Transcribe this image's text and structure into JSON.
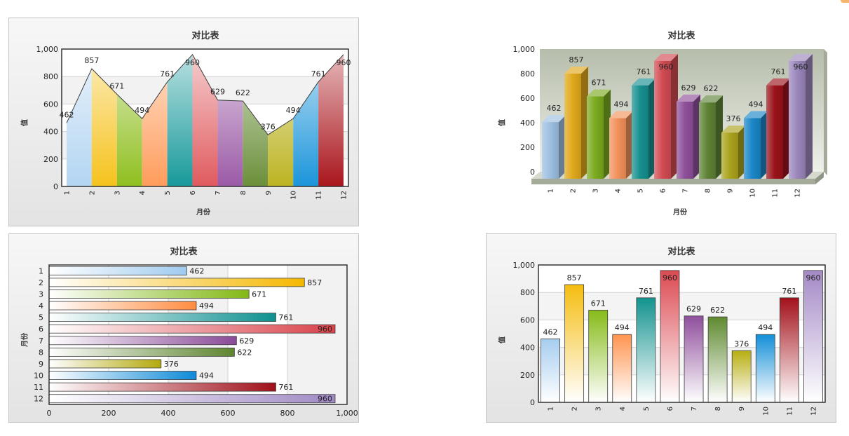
{
  "chart_data": [
    {
      "type": "area",
      "title": "对比表",
      "xlabel": "月份",
      "ylabel": "值",
      "categories": [
        "1",
        "2",
        "3",
        "4",
        "5",
        "6",
        "7",
        "8",
        "9",
        "10",
        "11",
        "12"
      ],
      "values": [
        462,
        857,
        671,
        494,
        761,
        960,
        629,
        622,
        376,
        494,
        761,
        960
      ],
      "ylim": [
        0,
        1000
      ],
      "yticks": [
        "0",
        "200",
        "400",
        "600",
        "800",
        "1,000"
      ],
      "grid": true,
      "data_labels": true,
      "colors": [
        "#b3d5f2",
        "#f6c21c",
        "#8fbf1f",
        "#ff9c5b",
        "#17999a",
        "#e05a5e",
        "#9b5aa6",
        "#6b8f3a",
        "#bcb422",
        "#1b95da",
        "#a9151c",
        "#a78fc6"
      ]
    },
    {
      "type": "bar",
      "style": "3d",
      "orientation": "vertical",
      "title": "对比表",
      "xlabel": "月份",
      "ylabel": "值",
      "categories": [
        "1",
        "2",
        "3",
        "4",
        "5",
        "6",
        "7",
        "8",
        "9",
        "10",
        "11",
        "12"
      ],
      "values": [
        462,
        857,
        671,
        494,
        761,
        960,
        629,
        622,
        376,
        494,
        761,
        960
      ],
      "ylim": [
        0,
        1000
      ],
      "yticks": [
        "0",
        "200",
        "400",
        "600",
        "800",
        "1,000"
      ],
      "data_labels": true,
      "colors": [
        "#9dbfe0",
        "#e0a81a",
        "#7aab1e",
        "#f2915a",
        "#178f8f",
        "#d24a52",
        "#8e4f9a",
        "#5d8234",
        "#aaa31c",
        "#1a86c8",
        "#9a121a",
        "#9a86bc"
      ]
    },
    {
      "type": "bar",
      "orientation": "horizontal",
      "title": "对比表",
      "ylabel": "月份",
      "categories": [
        "1",
        "2",
        "3",
        "4",
        "5",
        "6",
        "7",
        "8",
        "9",
        "10",
        "11",
        "12"
      ],
      "values": [
        462,
        857,
        671,
        494,
        761,
        960,
        629,
        622,
        376,
        494,
        761,
        960
      ],
      "xlim": [
        0,
        1000
      ],
      "xticks": [
        "0",
        "200",
        "400",
        "600",
        "800",
        "1,000"
      ],
      "grid": true,
      "data_labels": true,
      "colors": [
        "#9fcbf0",
        "#f5b800",
        "#82b814",
        "#ff8c40",
        "#0f9090",
        "#d9424a",
        "#8a4a98",
        "#5e8530",
        "#b3a90e",
        "#0d8ad8",
        "#a0101a",
        "#a08ac4"
      ]
    },
    {
      "type": "bar",
      "orientation": "vertical",
      "title": "对比表",
      "ylabel": "值",
      "categories": [
        "1",
        "2",
        "3",
        "4",
        "5",
        "6",
        "7",
        "8",
        "9",
        "10",
        "11",
        "12"
      ],
      "values": [
        462,
        857,
        671,
        494,
        761,
        960,
        629,
        622,
        376,
        494,
        761,
        960
      ],
      "ylim": [
        0,
        1000
      ],
      "yticks": [
        "0",
        "200",
        "400",
        "600",
        "800",
        "1,000"
      ],
      "grid": true,
      "data_labels": true,
      "colors": [
        "#a6cdef",
        "#f5bd10",
        "#86bb18",
        "#ff9450",
        "#13938f",
        "#dc4a52",
        "#8f4e9c",
        "#5f8a30",
        "#b7ae12",
        "#138fd8",
        "#a3101a",
        "#a48ac6"
      ]
    }
  ]
}
